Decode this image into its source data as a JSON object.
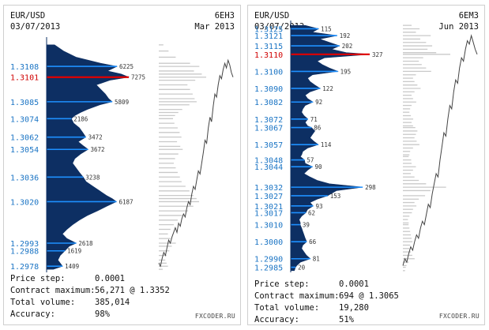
{
  "brand": "FXCODER.RU",
  "panels": [
    {
      "pair": "EUR/USD",
      "date": "03/07/2013",
      "contract": "6EH3",
      "expiry": "Mar 2013",
      "footer": [
        {
          "label": "Price step:",
          "value": "0.0001"
        },
        {
          "label": "Contract maximum:",
          "value": "56,271 @ 1.3352"
        },
        {
          "label": "Total volume:",
          "value": "385,014"
        },
        {
          "label": "Accuracy:",
          "value": "98%"
        }
      ],
      "chart_data": {
        "type": "bar",
        "orientation": "horizontal",
        "price_range": [
          1.2974,
          1.3125
        ],
        "highlight_price": 1.3101,
        "price_labels": [
          "1.3108",
          "1.3101",
          "1.3085",
          "1.3074",
          "1.3062",
          "1.3054",
          "1.3036",
          "1.3020",
          "1.2993",
          "1.2988",
          "1.2978"
        ],
        "volume_labels": [
          {
            "price": 1.3108,
            "value": 6225
          },
          {
            "price": 1.3101,
            "value": 7275
          },
          {
            "price": 1.3085,
            "value": 5809
          },
          {
            "price": 1.3074,
            "value": 2186
          },
          {
            "price": 1.3062,
            "value": 3472
          },
          {
            "price": 1.3054,
            "value": 3672
          },
          {
            "price": 1.3036,
            "value": 3238
          },
          {
            "price": 1.302,
            "value": 6187
          },
          {
            "price": 1.2993,
            "value": 2618
          },
          {
            "price": 1.2988,
            "value": 1619
          },
          {
            "price": 1.2978,
            "value": 1409
          }
        ],
        "profile_points": [
          [
            1.3122,
            700
          ],
          [
            1.3118,
            1500
          ],
          [
            1.3114,
            2600
          ],
          [
            1.311,
            4800
          ],
          [
            1.3108,
            6225
          ],
          [
            1.3105,
            5400
          ],
          [
            1.3103,
            6600
          ],
          [
            1.3101,
            7275
          ],
          [
            1.3099,
            5600
          ],
          [
            1.3096,
            4400
          ],
          [
            1.3093,
            4800
          ],
          [
            1.309,
            5200
          ],
          [
            1.3087,
            5500
          ],
          [
            1.3085,
            5809
          ],
          [
            1.3083,
            4700
          ],
          [
            1.308,
            3600
          ],
          [
            1.3078,
            3000
          ],
          [
            1.3076,
            2500
          ],
          [
            1.3074,
            2186
          ],
          [
            1.3071,
            2400
          ],
          [
            1.3068,
            2900
          ],
          [
            1.3065,
            3200
          ],
          [
            1.3062,
            3472
          ],
          [
            1.3059,
            2800
          ],
          [
            1.3056,
            3300
          ],
          [
            1.3054,
            3672
          ],
          [
            1.3051,
            3000
          ],
          [
            1.3048,
            2500
          ],
          [
            1.3045,
            2300
          ],
          [
            1.3042,
            2600
          ],
          [
            1.3039,
            2900
          ],
          [
            1.3036,
            3238
          ],
          [
            1.3033,
            3500
          ],
          [
            1.303,
            4100
          ],
          [
            1.3027,
            4700
          ],
          [
            1.3024,
            5300
          ],
          [
            1.3022,
            5800
          ],
          [
            1.302,
            6187
          ],
          [
            1.3017,
            5300
          ],
          [
            1.3014,
            4500
          ],
          [
            1.3011,
            3600
          ],
          [
            1.3008,
            2900
          ],
          [
            1.3005,
            2300
          ],
          [
            1.3002,
            1800
          ],
          [
            1.2999,
            1400
          ],
          [
            1.2996,
            1800
          ],
          [
            1.2993,
            2618
          ],
          [
            1.2991,
            2000
          ],
          [
            1.2988,
            1619
          ],
          [
            1.2985,
            1200
          ],
          [
            1.2982,
            1000
          ],
          [
            1.298,
            1200
          ],
          [
            1.2978,
            1409
          ],
          [
            1.2976,
            600
          ]
        ],
        "price_path": [
          1.298,
          1.2978,
          1.2983,
          1.2987,
          1.2985,
          1.299,
          1.2995,
          1.2993,
          1.2997,
          1.3,
          1.3003,
          1.3,
          1.3006,
          1.3004,
          1.3009,
          1.3012,
          1.301,
          1.3016,
          1.302,
          1.3018,
          1.3025,
          1.303,
          1.3028,
          1.3034,
          1.304,
          1.3038,
          1.3045,
          1.3052,
          1.306,
          1.3058,
          1.3068,
          1.3075,
          1.3072,
          1.3082,
          1.309,
          1.3088,
          1.3096,
          1.3102,
          1.31,
          1.3106,
          1.311,
          1.3107,
          1.3112,
          1.3109,
          1.3104,
          1.3101
        ]
      }
    },
    {
      "pair": "EUR/USD",
      "date": "03/07/2013",
      "contract": "6EM3",
      "expiry": "Jun 2013",
      "footer": [
        {
          "label": "Price step:",
          "value": "0.0001"
        },
        {
          "label": "Contract maximum:",
          "value": "694 @ 1.3065"
        },
        {
          "label": "Total volume:",
          "value": "19,280"
        },
        {
          "label": "Accuracy:",
          "value": "51%"
        }
      ],
      "chart_data": {
        "type": "bar",
        "orientation": "horizontal",
        "price_range": [
          1.2982,
          1.3128
        ],
        "highlight_price": 1.311,
        "price_labels": [
          "1.3125",
          "1.3121",
          "1.3115",
          "1.3110",
          "1.3100",
          "1.3090",
          "1.3082",
          "1.3072",
          "1.3067",
          "1.3057",
          "1.3048",
          "1.3044",
          "1.3032",
          "1.3027",
          "1.3021",
          "1.3017",
          "1.3010",
          "1.3000",
          "1.2990",
          "1.2985"
        ],
        "volume_labels": [
          {
            "price": 1.3125,
            "value": 115
          },
          {
            "price": 1.3121,
            "value": 192
          },
          {
            "price": 1.3115,
            "value": 202
          },
          {
            "price": 1.311,
            "value": 327
          },
          {
            "price": 1.31,
            "value": 195
          },
          {
            "price": 1.309,
            "value": 122
          },
          {
            "price": 1.3082,
            "value": 92
          },
          {
            "price": 1.3072,
            "value": 71
          },
          {
            "price": 1.3067,
            "value": 86
          },
          {
            "price": 1.3057,
            "value": 114
          },
          {
            "price": 1.3048,
            "value": 57
          },
          {
            "price": 1.3044,
            "value": 90
          },
          {
            "price": 1.3032,
            "value": 298
          },
          {
            "price": 1.3027,
            "value": 153
          },
          {
            "price": 1.3021,
            "value": 93
          },
          {
            "price": 1.3017,
            "value": 62
          },
          {
            "price": 1.301,
            "value": 39
          },
          {
            "price": 1.3,
            "value": 66
          },
          {
            "price": 1.299,
            "value": 81
          },
          {
            "price": 1.2985,
            "value": 20
          }
        ],
        "profile_points": [
          [
            1.3127,
            60
          ],
          [
            1.3125,
            115
          ],
          [
            1.3123,
            90
          ],
          [
            1.3121,
            192
          ],
          [
            1.3119,
            120
          ],
          [
            1.3117,
            160
          ],
          [
            1.3115,
            202
          ],
          [
            1.3113,
            170
          ],
          [
            1.3111,
            230
          ],
          [
            1.311,
            327
          ],
          [
            1.3108,
            140
          ],
          [
            1.3106,
            110
          ],
          [
            1.3104,
            130
          ],
          [
            1.3102,
            160
          ],
          [
            1.31,
            195
          ],
          [
            1.3098,
            90
          ],
          [
            1.3096,
            70
          ],
          [
            1.3094,
            80
          ],
          [
            1.3092,
            100
          ],
          [
            1.309,
            122
          ],
          [
            1.3088,
            80
          ],
          [
            1.3086,
            60
          ],
          [
            1.3084,
            70
          ],
          [
            1.3082,
            92
          ],
          [
            1.308,
            60
          ],
          [
            1.3078,
            50
          ],
          [
            1.3076,
            45
          ],
          [
            1.3074,
            55
          ],
          [
            1.3072,
            71
          ],
          [
            1.307,
            60
          ],
          [
            1.3068,
            70
          ],
          [
            1.3067,
            86
          ],
          [
            1.3065,
            100
          ],
          [
            1.3063,
            90
          ],
          [
            1.3061,
            80
          ],
          [
            1.3059,
            95
          ],
          [
            1.3057,
            114
          ],
          [
            1.3055,
            70
          ],
          [
            1.3053,
            50
          ],
          [
            1.3051,
            45
          ],
          [
            1.305,
            40
          ],
          [
            1.3048,
            57
          ],
          [
            1.3046,
            60
          ],
          [
            1.3044,
            90
          ],
          [
            1.3042,
            70
          ],
          [
            1.304,
            55
          ],
          [
            1.3038,
            80
          ],
          [
            1.3036,
            110
          ],
          [
            1.3034,
            160
          ],
          [
            1.3032,
            298
          ],
          [
            1.303,
            190
          ],
          [
            1.3027,
            153
          ],
          [
            1.3025,
            110
          ],
          [
            1.3023,
            80
          ],
          [
            1.3021,
            93
          ],
          [
            1.3019,
            70
          ],
          [
            1.3017,
            62
          ],
          [
            1.3015,
            45
          ],
          [
            1.3013,
            35
          ],
          [
            1.3011,
            40
          ],
          [
            1.301,
            39
          ],
          [
            1.3008,
            45
          ],
          [
            1.3006,
            50
          ],
          [
            1.3004,
            55
          ],
          [
            1.3002,
            60
          ],
          [
            1.3,
            66
          ],
          [
            1.2998,
            50
          ],
          [
            1.2996,
            45
          ],
          [
            1.2994,
            55
          ],
          [
            1.2992,
            65
          ],
          [
            1.299,
            81
          ],
          [
            1.2988,
            40
          ],
          [
            1.2986,
            25
          ],
          [
            1.2985,
            20
          ],
          [
            1.2983,
            15
          ]
        ],
        "price_path": [
          1.2986,
          1.299,
          1.2988,
          1.2993,
          1.2997,
          1.2995,
          1.3,
          1.3004,
          1.3002,
          1.3008,
          1.3012,
          1.301,
          1.3016,
          1.3022,
          1.302,
          1.3028,
          1.3034,
          1.304,
          1.3038,
          1.3048,
          1.3056,
          1.3064,
          1.3062,
          1.3072,
          1.308,
          1.3078,
          1.3088,
          1.3095,
          1.3093,
          1.3102,
          1.3108,
          1.3106,
          1.3113,
          1.3118,
          1.3116,
          1.3121,
          1.3117,
          1.3113,
          1.311
        ]
      }
    }
  ]
}
